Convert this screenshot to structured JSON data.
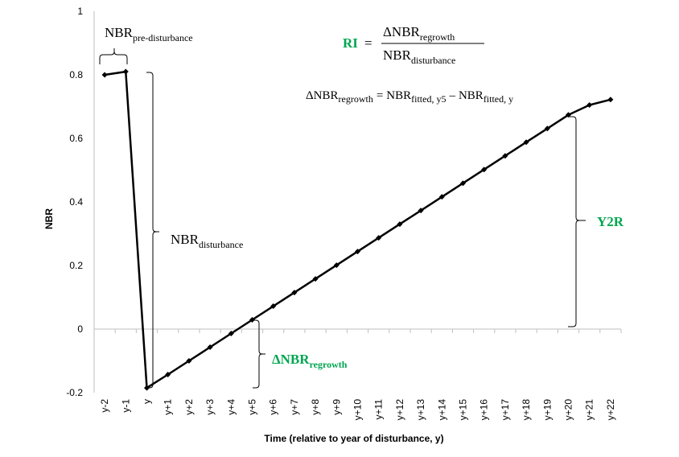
{
  "colors": {
    "accent_green": "#00a651",
    "line": "#000000",
    "axis": "#bfbfbf"
  },
  "chart_data": {
    "type": "line",
    "title": "",
    "xlabel": "Time (relative to year of disturbance, y)",
    "ylabel": "NBR",
    "ylim": [
      -0.2,
      1
    ],
    "yticks": [
      "-0.2",
      "0",
      "0.2",
      "0.4",
      "0.6",
      "0.8",
      "1"
    ],
    "categories": [
      "y-2",
      "y-1",
      "y",
      "y+1",
      "y+2",
      "y+3",
      "y+4",
      "y+5",
      "y+6",
      "y+7",
      "y+8",
      "y+9",
      "y+10",
      "y+11",
      "y+12",
      "y+13",
      "y+14",
      "y+15",
      "y+16",
      "y+17",
      "y+18",
      "y+19",
      "y+20",
      "y+21",
      "y+22"
    ],
    "values": [
      0.8,
      0.81,
      -0.185,
      -0.143,
      -0.1,
      -0.057,
      -0.014,
      0.029,
      0.072,
      0.115,
      0.158,
      0.201,
      0.244,
      0.287,
      0.33,
      0.373,
      0.416,
      0.459,
      0.502,
      0.545,
      0.588,
      0.631,
      0.674,
      0.705,
      0.722
    ],
    "grid": false,
    "annotations": {
      "pre_disturbance": {
        "base": "NBR",
        "sub": "pre-disturbance"
      },
      "disturbance": {
        "base": "NBR",
        "sub": "disturbance"
      },
      "regrowth": {
        "base": "ΔNBR",
        "sub": "regrowth"
      },
      "y2r": "Y2R",
      "ri_formula": {
        "lhs": "RI",
        "eq": "=",
        "num_base": "ΔNBR",
        "num_sub": "regrowth",
        "den_base": "NBR",
        "den_sub": "disturbance"
      },
      "regrowth_formula": {
        "lhs_base": "ΔNBR",
        "lhs_sub": "regrowth",
        "eq": "=",
        "t1_base": "NBR",
        "t1_sub": "fitted, y5",
        "minus": "–",
        "t2_base": "NBR",
        "t2_sub": "fitted, y"
      }
    }
  }
}
